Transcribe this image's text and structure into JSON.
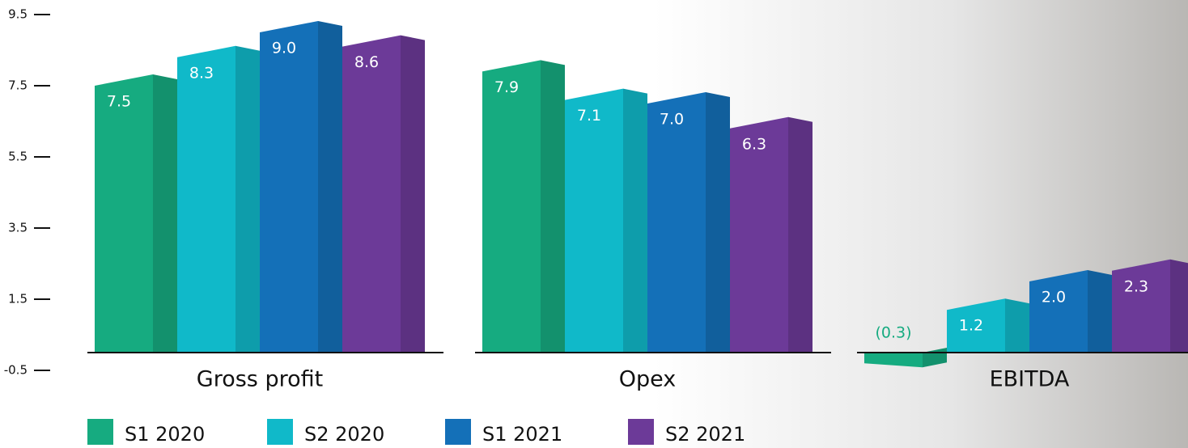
{
  "chart_data": {
    "type": "bar",
    "categories": [
      "Gross profit",
      "Opex",
      "EBITDA"
    ],
    "series": [
      {
        "name": "S1 2020",
        "color": "#16ab80",
        "values": [
          7.5,
          7.9,
          -0.3
        ],
        "value_labels": [
          "7.5",
          "7.9",
          "(0.3)"
        ]
      },
      {
        "name": "S2 2020",
        "color": "#10b9c9",
        "values": [
          8.3,
          7.1,
          1.2
        ],
        "value_labels": [
          "8.3",
          "7.1",
          "1.2"
        ]
      },
      {
        "name": "S1 2021",
        "color": "#1470b8",
        "values": [
          9.0,
          7.0,
          2.0
        ],
        "value_labels": [
          "9.0",
          "7.0",
          "2.0"
        ]
      },
      {
        "name": "S2 2021",
        "color": "#6c3a98",
        "values": [
          8.6,
          6.3,
          2.3
        ],
        "value_labels": [
          "8.6",
          "6.3",
          "2.3"
        ]
      }
    ],
    "ylim": [
      -0.5,
      9.5
    ],
    "yticks": [
      -0.5,
      1.5,
      3.5,
      5.5,
      7.5,
      9.5
    ]
  }
}
